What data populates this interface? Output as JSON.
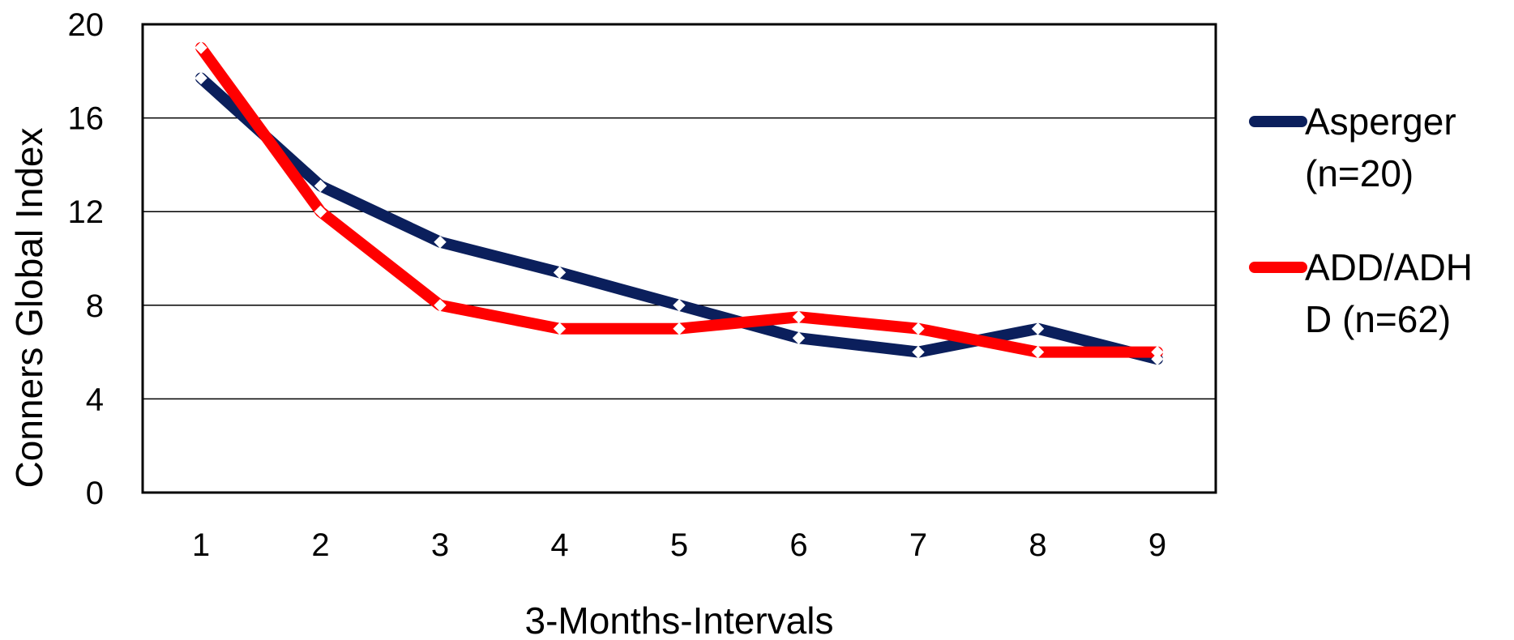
{
  "chart_data": {
    "type": "line",
    "title": "",
    "xlabel": "3-Months-Intervals",
    "ylabel": "Conners Global Index",
    "categories": [
      "1",
      "2",
      "3",
      "4",
      "5",
      "6",
      "7",
      "8",
      "9"
    ],
    "ylim": [
      0,
      20
    ],
    "yticks": [
      "0",
      "4",
      "8",
      "12",
      "16",
      "20"
    ],
    "grid": true,
    "legend_position": "right",
    "series": [
      {
        "name_lines": [
          "Asperger",
          "(n=20)"
        ],
        "color": "#0b1f5c",
        "values": [
          17.7,
          13.1,
          10.7,
          9.4,
          8.0,
          6.6,
          6.0,
          7.0,
          5.7
        ]
      },
      {
        "name_lines": [
          "ADD/ADH",
          "D (n=62)"
        ],
        "color": "#ff0000",
        "values": [
          19.0,
          12.0,
          8.0,
          7.0,
          7.0,
          7.5,
          7.0,
          6.0,
          6.0
        ]
      }
    ]
  }
}
